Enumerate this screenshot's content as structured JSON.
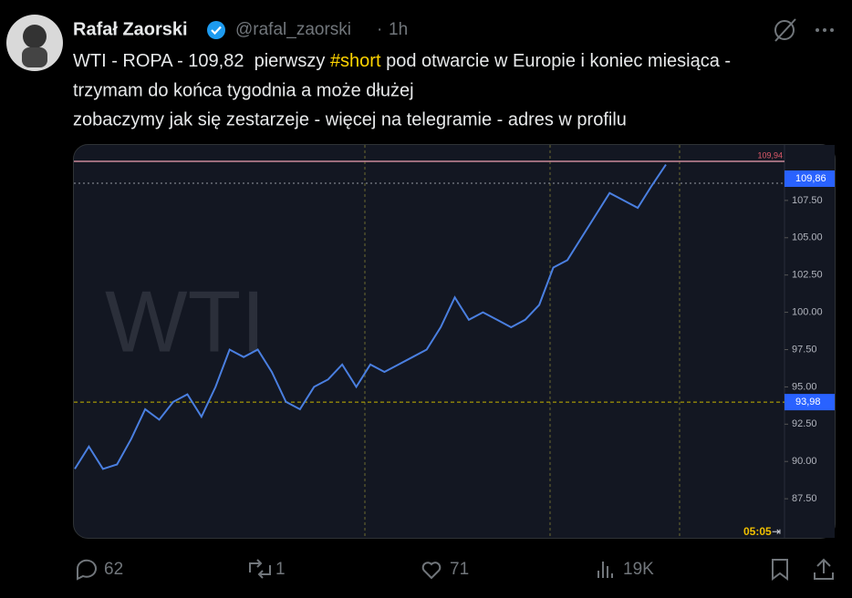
{
  "author": {
    "name": "Rafał Zaorski",
    "handle": "@rafal_zaorski",
    "separator": "·",
    "time": "1h"
  },
  "text": {
    "line1": {
      "before": "WTI - ROPA - 109,82  pierwszy ",
      "hashtag": "#short",
      "after": " pod otwarcie w Europie i koniec miesiąca -"
    },
    "line2": "trzymam do końca tygodnia a może dłużej",
    "line3": "zobaczymy jak się zestarzeje - więcej na telegramie - adres w profilu"
  },
  "media": {
    "watermark": "WTI",
    "time_label": "05:05",
    "chart_data": {
      "type": "line",
      "color": "#4a7fe0",
      "values": [
        89.5,
        91,
        89.5,
        89.8,
        91.5,
        93.5,
        92.8,
        94,
        94.5,
        93,
        95,
        97.5,
        97,
        97.5,
        96,
        94,
        93.5,
        95,
        95.5,
        96.5,
        95,
        96.5,
        96,
        96.5,
        97,
        97.5,
        99,
        101,
        99.5,
        100,
        99.5,
        99,
        99.5,
        100.5,
        103,
        103.5,
        105,
        106.5,
        108,
        107.5,
        107,
        108.5,
        109.9
      ],
      "ylim": [
        84.88,
        111.22
      ],
      "yticks": [
        {
          "value": 87.5,
          "label": "87.50"
        },
        {
          "value": 90,
          "label": "90.00"
        },
        {
          "value": 92.5,
          "label": "92.50"
        },
        {
          "value": 95,
          "label": "95.00"
        },
        {
          "value": 97.5,
          "label": "97.50"
        },
        {
          "value": 100,
          "label": "100.00"
        },
        {
          "value": 102.5,
          "label": "102.50"
        },
        {
          "value": 105,
          "label": "105.00"
        },
        {
          "value": 107.5,
          "label": "107.50"
        }
      ],
      "high_line": {
        "value": 109.94,
        "label": "109,94"
      },
      "last_price": {
        "value": 109.86,
        "label": "109,86"
      },
      "crosshair": {
        "value": 93.98,
        "label": "93,98"
      }
    }
  },
  "stats": {
    "replies": 62,
    "reposts": 1,
    "likes": 71,
    "views": "19K"
  }
}
